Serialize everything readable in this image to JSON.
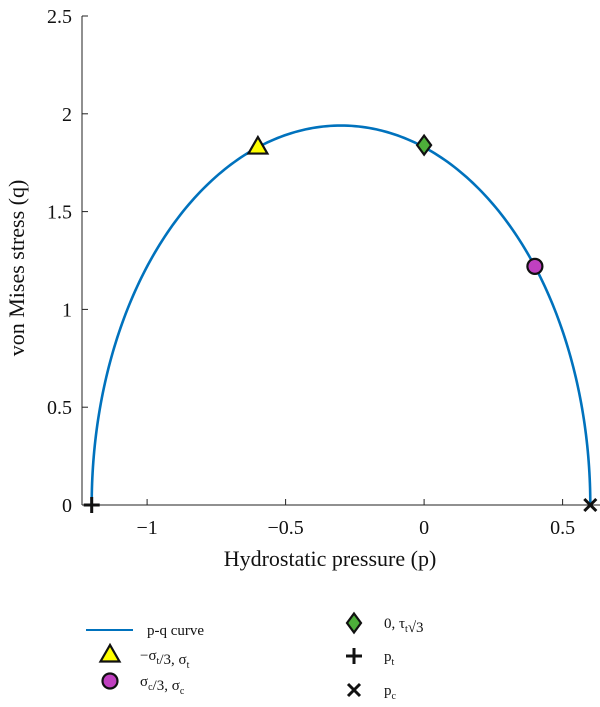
{
  "chart_data": {
    "type": "line",
    "xlabel": "Hydrostatic pressure (p)",
    "ylabel": "von Mises stress (q)",
    "xlim": [
      -1.2,
      0.6
    ],
    "ylim": [
      0,
      2.5
    ],
    "x_ticks": [
      -1,
      -0.5,
      0,
      0.5
    ],
    "x_tick_labels": [
      "−1",
      "−0.5",
      "0",
      "0.5"
    ],
    "y_ticks": [
      0,
      0.5,
      1,
      1.5,
      2,
      2.5
    ],
    "y_tick_labels": [
      "0",
      "0.5",
      "1",
      "1.5",
      "2",
      "2.5"
    ],
    "grid": false,
    "legend_position": "below",
    "curve": {
      "name": "p-q curve",
      "color": "#0072BD",
      "p_t": -1.2,
      "p_c": 0.6,
      "q_max": 1.94
    },
    "markers": [
      {
        "key": "tri",
        "shape": "triangle",
        "x": -0.6,
        "y": 1.83,
        "color": "#FFFF00",
        "label_main": "−σ",
        "label_sub": "t",
        "label_rest": "/3, σ",
        "label_sub2": "t"
      },
      {
        "key": "circ",
        "shape": "circle",
        "x": 0.4,
        "y": 1.22,
        "color": "#C040C0",
        "label_main": "σ",
        "label_sub": "c",
        "label_rest": "/3, σ",
        "label_sub2": "c"
      },
      {
        "key": "diam",
        "shape": "diamond",
        "x": 0.0,
        "y": 1.84,
        "color": "#4DAF3A",
        "label_main": "0, τ",
        "label_sub": "t",
        "label_rest": "√3",
        "label_sub2": ""
      },
      {
        "key": "plus",
        "shape": "plus",
        "x": -1.2,
        "y": 0,
        "color": "#111111",
        "label_main": "p",
        "label_sub": "t",
        "label_rest": "",
        "label_sub2": ""
      },
      {
        "key": "cross",
        "shape": "cross",
        "x": 0.6,
        "y": 0,
        "color": "#111111",
        "label_main": "p",
        "label_sub": "c",
        "label_rest": "",
        "label_sub2": ""
      }
    ]
  }
}
